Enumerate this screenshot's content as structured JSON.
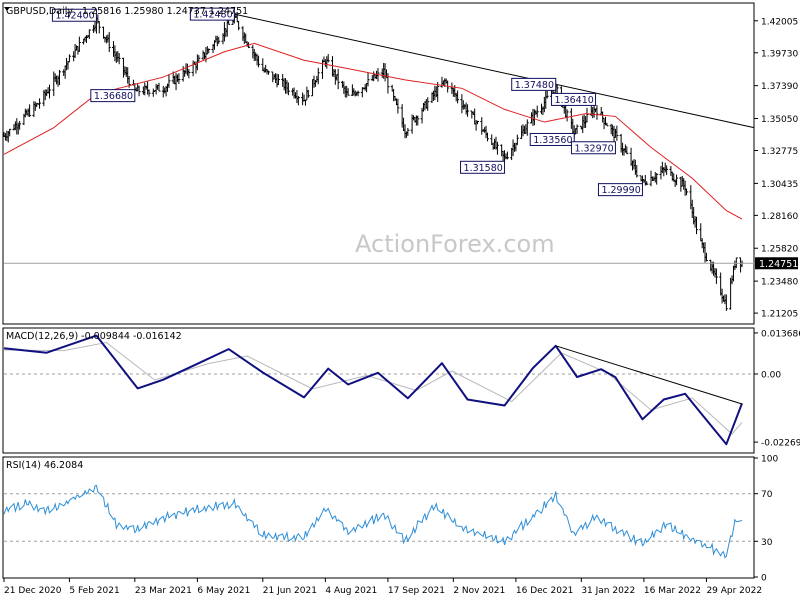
{
  "chart_data": [
    {
      "type": "candlestick",
      "title": "GBPUSD,Daily",
      "ohlc": "1.25816 1.25980 1.24737 1.24751",
      "watermark": "ActionForex.com",
      "current_price": "1.24751",
      "moving_average": {
        "color": "#e02020"
      },
      "ylim": [
        1.205,
        1.432
      ],
      "y_ticks": [
        "1.42005",
        "1.39730",
        "1.37390",
        "1.35050",
        "1.32775",
        "1.30435",
        "1.28160",
        "1.25820",
        "1.23480",
        "1.21205"
      ],
      "annotations": [
        {
          "label": "1.42400",
          "date": "2021-02-24",
          "price": 1.424
        },
        {
          "label": "1.36680",
          "date": "2021-03-23",
          "price": 1.3668
        },
        {
          "label": "1.42480",
          "date": "2021-06-01",
          "price": 1.4248
        },
        {
          "label": "1.31580",
          "date": "2021-12-08",
          "price": 1.3158
        },
        {
          "label": "1.33560",
          "date": "2022-01-26",
          "price": 1.3356
        },
        {
          "label": "1.37480",
          "date": "2022-01-13",
          "price": 1.3748
        },
        {
          "label": "1.36410",
          "date": "2022-02-10",
          "price": 1.3641
        },
        {
          "label": "1.32970",
          "date": "2022-02-24",
          "price": 1.3297
        },
        {
          "label": "1.29990",
          "date": "2022-03-15",
          "price": 1.2999
        }
      ],
      "trendline": {
        "from": {
          "date": "2021-06-01",
          "price": 1.4248
        },
        "to": {
          "date": "2022-05-18",
          "price": 1.344
        }
      },
      "key_points": [
        {
          "date": "2020-12-21",
          "close": 1.338
        },
        {
          "date": "2021-01-15",
          "close": 1.362
        },
        {
          "date": "2021-02-24",
          "close": 1.42
        },
        {
          "date": "2021-03-23",
          "close": 1.37
        },
        {
          "date": "2021-04-12",
          "close": 1.372
        },
        {
          "date": "2021-05-06",
          "close": 1.39
        },
        {
          "date": "2021-06-01",
          "close": 1.422
        },
        {
          "date": "2021-06-21",
          "close": 1.385
        },
        {
          "date": "2021-07-20",
          "close": 1.364
        },
        {
          "date": "2021-08-04",
          "close": 1.392
        },
        {
          "date": "2021-08-20",
          "close": 1.366
        },
        {
          "date": "2021-09-14",
          "close": 1.384
        },
        {
          "date": "2021-09-29",
          "close": 1.342
        },
        {
          "date": "2021-10-27",
          "close": 1.377
        },
        {
          "date": "2021-12-08",
          "close": 1.322
        },
        {
          "date": "2021-12-28",
          "close": 1.352
        },
        {
          "date": "2022-01-13",
          "close": 1.372
        },
        {
          "date": "2022-01-26",
          "close": 1.34
        },
        {
          "date": "2022-02-10",
          "close": 1.358
        },
        {
          "date": "2022-02-24",
          "close": 1.338
        },
        {
          "date": "2022-03-15",
          "close": 1.305
        },
        {
          "date": "2022-03-31",
          "close": 1.314
        },
        {
          "date": "2022-04-14",
          "close": 1.302
        },
        {
          "date": "2022-04-25",
          "close": 1.262
        },
        {
          "date": "2022-05-13",
          "close": 1.218
        },
        {
          "date": "2022-05-20",
          "close": 1.252
        },
        {
          "date": "2022-05-24",
          "close": 1.2475
        }
      ],
      "ma_points": [
        {
          "date": "2020-12-21",
          "value": 1.325
        },
        {
          "date": "2021-01-25",
          "value": 1.344
        },
        {
          "date": "2021-02-24",
          "value": 1.368
        },
        {
          "date": "2021-04-12",
          "value": 1.38
        },
        {
          "date": "2021-05-25",
          "value": 1.398
        },
        {
          "date": "2021-06-15",
          "value": 1.404
        },
        {
          "date": "2021-07-20",
          "value": 1.392
        },
        {
          "date": "2021-08-20",
          "value": 1.386
        },
        {
          "date": "2021-09-29",
          "value": 1.378
        },
        {
          "date": "2021-11-08",
          "value": 1.372
        },
        {
          "date": "2021-12-08",
          "value": 1.357
        },
        {
          "date": "2022-01-05",
          "value": 1.348
        },
        {
          "date": "2022-02-03",
          "value": 1.354
        },
        {
          "date": "2022-02-24",
          "value": 1.352
        },
        {
          "date": "2022-03-21",
          "value": 1.33
        },
        {
          "date": "2022-04-19",
          "value": 1.308
        },
        {
          "date": "2022-05-13",
          "value": 1.285
        },
        {
          "date": "2022-05-24",
          "value": 1.279
        }
      ]
    },
    {
      "type": "line",
      "title": "MACD(12,26,9) -0.009844 -0.016142",
      "ylim": [
        -0.026,
        0.015
      ],
      "y_ticks": [
        "0.013686",
        "0.00",
        "-0.022698"
      ],
      "macd_points": [
        {
          "date": "2020-12-21",
          "value": 0.0086
        },
        {
          "date": "2021-01-20",
          "value": 0.0071
        },
        {
          "date": "2021-02-24",
          "value": 0.0128
        },
        {
          "date": "2021-03-25",
          "value": -0.0048
        },
        {
          "date": "2021-04-12",
          "value": -0.0019
        },
        {
          "date": "2021-05-06",
          "value": 0.0034
        },
        {
          "date": "2021-05-28",
          "value": 0.0083
        },
        {
          "date": "2021-06-21",
          "value": 0.0005
        },
        {
          "date": "2021-07-20",
          "value": -0.0078
        },
        {
          "date": "2021-08-06",
          "value": 0.0018
        },
        {
          "date": "2021-08-20",
          "value": -0.0035
        },
        {
          "date": "2021-09-10",
          "value": 0.0004
        },
        {
          "date": "2021-10-01",
          "value": -0.0081
        },
        {
          "date": "2021-10-25",
          "value": 0.0036
        },
        {
          "date": "2021-11-12",
          "value": -0.0085
        },
        {
          "date": "2021-12-08",
          "value": -0.0105
        },
        {
          "date": "2021-12-28",
          "value": 0.002
        },
        {
          "date": "2022-01-13",
          "value": 0.0094
        },
        {
          "date": "2022-01-28",
          "value": -0.001
        },
        {
          "date": "2022-02-14",
          "value": 0.0016
        },
        {
          "date": "2022-02-24",
          "value": -0.0011
        },
        {
          "date": "2022-03-15",
          "value": -0.0151
        },
        {
          "date": "2022-03-30",
          "value": -0.0085
        },
        {
          "date": "2022-04-14",
          "value": -0.0066
        },
        {
          "date": "2022-04-25",
          "value": -0.013
        },
        {
          "date": "2022-05-13",
          "value": -0.0234
        },
        {
          "date": "2022-05-24",
          "value": -0.0098
        }
      ],
      "signal_points": [
        {
          "date": "2020-12-21",
          "value": 0.008
        },
        {
          "date": "2021-02-01",
          "value": 0.0078
        },
        {
          "date": "2021-03-03",
          "value": 0.0105
        },
        {
          "date": "2021-04-06",
          "value": -0.002
        },
        {
          "date": "2021-05-14",
          "value": 0.0035
        },
        {
          "date": "2021-06-10",
          "value": 0.006
        },
        {
          "date": "2021-07-26",
          "value": -0.005
        },
        {
          "date": "2021-09-02",
          "value": -0.0005
        },
        {
          "date": "2021-10-07",
          "value": -0.0055
        },
        {
          "date": "2021-11-01",
          "value": 0.001
        },
        {
          "date": "2021-12-13",
          "value": -0.0092
        },
        {
          "date": "2022-01-17",
          "value": 0.007
        },
        {
          "date": "2022-02-18",
          "value": 0.0005
        },
        {
          "date": "2022-03-21",
          "value": -0.012
        },
        {
          "date": "2022-04-19",
          "value": -0.008
        },
        {
          "date": "2022-05-17",
          "value": -0.02
        },
        {
          "date": "2022-05-24",
          "value": -0.0161
        }
      ],
      "trendline": {
        "from": {
          "date": "2022-01-13",
          "value": 0.0094
        },
        "to": {
          "date": "2022-05-24",
          "value": -0.01
        }
      }
    },
    {
      "type": "line",
      "title": "RSI(14) 46.2084",
      "ylim": [
        0,
        100
      ],
      "y_ticks": [
        "100",
        "70",
        "30",
        "0"
      ],
      "levels": [
        70,
        30
      ],
      "rsi_points": [
        {
          "date": "2020-12-21",
          "value": 56
        },
        {
          "date": "2021-01-06",
          "value": 62
        },
        {
          "date": "2021-01-22",
          "value": 55
        },
        {
          "date": "2021-02-24",
          "value": 76
        },
        {
          "date": "2021-03-10",
          "value": 44
        },
        {
          "date": "2021-03-25",
          "value": 40
        },
        {
          "date": "2021-04-12",
          "value": 50
        },
        {
          "date": "2021-05-06",
          "value": 57
        },
        {
          "date": "2021-06-01",
          "value": 62
        },
        {
          "date": "2021-06-21",
          "value": 35
        },
        {
          "date": "2021-07-20",
          "value": 33
        },
        {
          "date": "2021-08-04",
          "value": 58
        },
        {
          "date": "2021-08-20",
          "value": 38
        },
        {
          "date": "2021-09-14",
          "value": 52
        },
        {
          "date": "2021-09-29",
          "value": 31
        },
        {
          "date": "2021-10-20",
          "value": 60
        },
        {
          "date": "2021-11-08",
          "value": 41
        },
        {
          "date": "2021-12-08",
          "value": 30
        },
        {
          "date": "2022-01-13",
          "value": 68
        },
        {
          "date": "2022-01-26",
          "value": 36
        },
        {
          "date": "2022-02-10",
          "value": 50
        },
        {
          "date": "2022-03-15",
          "value": 28
        },
        {
          "date": "2022-03-31",
          "value": 44
        },
        {
          "date": "2022-04-14",
          "value": 35
        },
        {
          "date": "2022-05-13",
          "value": 18
        },
        {
          "date": "2022-05-20",
          "value": 49
        },
        {
          "date": "2022-05-24",
          "value": 46.2084
        }
      ]
    }
  ],
  "x_axis": {
    "range": [
      "2020-12-21",
      "2022-05-24"
    ],
    "ticks": [
      {
        "label": "21 Dec 2020",
        "date": "2020-12-21"
      },
      {
        "label": "5 Feb 2021",
        "date": "2021-02-05"
      },
      {
        "label": "23 Mar 2021",
        "date": "2021-03-23"
      },
      {
        "label": "6 May 2021",
        "date": "2021-05-06"
      },
      {
        "label": "21 Jun 2021",
        "date": "2021-06-21"
      },
      {
        "label": "4 Aug 2021",
        "date": "2021-08-04"
      },
      {
        "label": "17 Sep 2021",
        "date": "2021-09-17"
      },
      {
        "label": "2 Nov 2021",
        "date": "2021-11-02"
      },
      {
        "label": "16 Dec 2021",
        "date": "2021-12-16"
      },
      {
        "label": "31 Jan 2022",
        "date": "2022-01-31"
      },
      {
        "label": "16 Mar 2022",
        "date": "2022-03-16"
      },
      {
        "label": "29 Apr 2022",
        "date": "2022-04-29"
      }
    ]
  }
}
